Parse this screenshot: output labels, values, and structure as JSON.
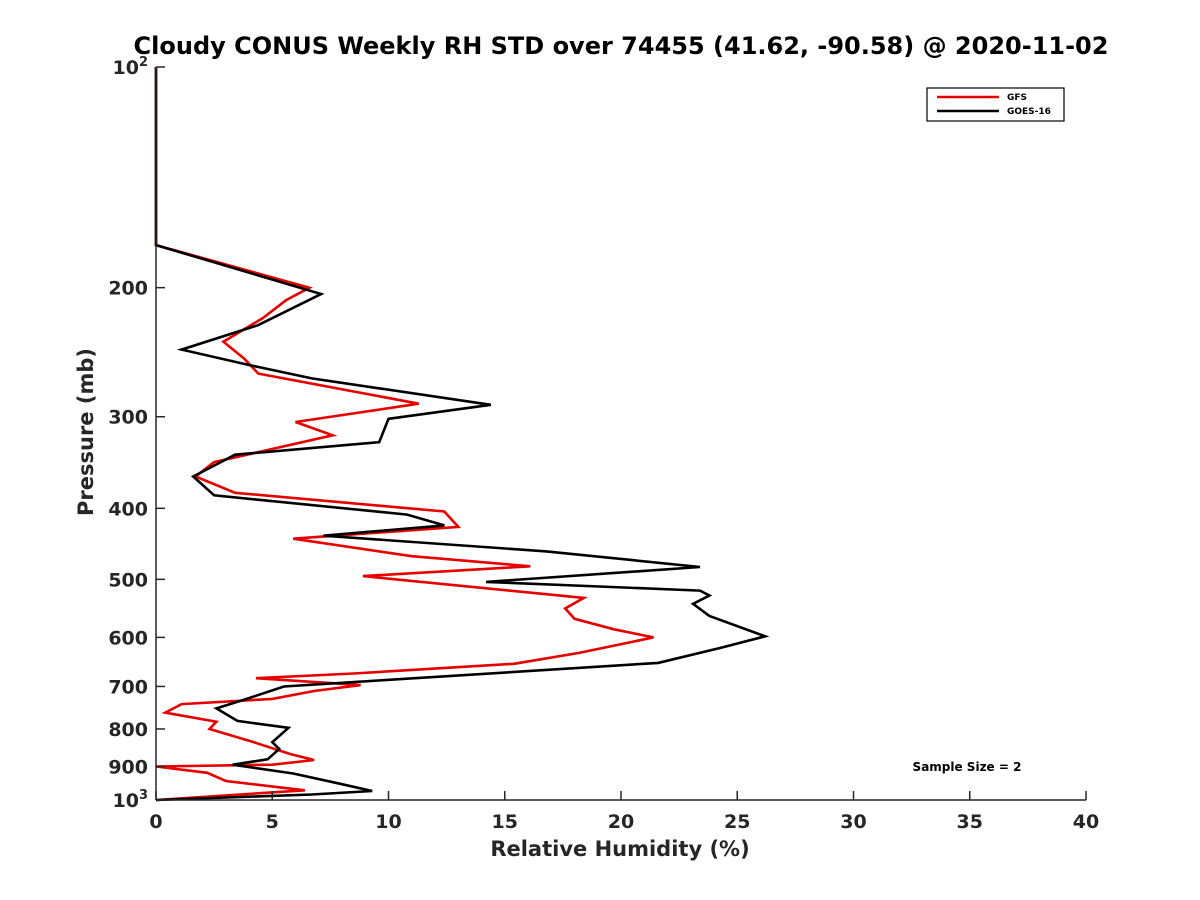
{
  "chart_data": {
    "type": "line",
    "title": "Cloudy CONUS Weekly RH STD over 74455 (41.62, -90.58) @ 2020-11-02",
    "xlabel": "Relative Humidity (%)",
    "ylabel": "Pressure (mb)",
    "xlim": [
      0,
      40
    ],
    "ylim": [
      100,
      1000
    ],
    "y_scale": "log",
    "y_reversed": true,
    "grid": false,
    "legend_position": "top-right",
    "x_ticks": [
      "0",
      "5",
      "10",
      "15",
      "20",
      "25",
      "30",
      "35",
      "40"
    ],
    "y_ticks": [
      {
        "value": 100,
        "base": "10",
        "exp": "2"
      },
      {
        "value": 200,
        "label": "200"
      },
      {
        "value": 300,
        "label": "300"
      },
      {
        "value": 400,
        "label": "400"
      },
      {
        "value": 500,
        "label": "500"
      },
      {
        "value": 600,
        "label": "600"
      },
      {
        "value": 700,
        "label": "700"
      },
      {
        "value": 800,
        "label": "800"
      },
      {
        "value": 900,
        "label": "900"
      },
      {
        "value": 1000,
        "base": "10",
        "exp": "3"
      }
    ],
    "annotation": "Sample Size = 2",
    "series": [
      {
        "name": "GFS",
        "color": "#e60000",
        "points": [
          [
            0,
            100
          ],
          [
            0,
            175
          ],
          [
            6.6,
            200
          ],
          [
            5.6,
            208
          ],
          [
            4.6,
            220
          ],
          [
            2.9,
            237
          ],
          [
            3.8,
            250
          ],
          [
            4.4,
            262
          ],
          [
            11.3,
            288
          ],
          [
            6.0,
            305
          ],
          [
            7.6,
            318
          ],
          [
            2.5,
            346
          ],
          [
            1.7,
            362
          ],
          [
            3.4,
            381
          ],
          [
            12.4,
            404
          ],
          [
            13.0,
            424
          ],
          [
            5.9,
            440
          ],
          [
            11.0,
            465
          ],
          [
            16.1,
            480
          ],
          [
            8.9,
            495
          ],
          [
            18.4,
            530
          ],
          [
            17.6,
            548
          ],
          [
            18.0,
            566
          ],
          [
            19.7,
            585
          ],
          [
            21.4,
            600
          ],
          [
            18.2,
            630
          ],
          [
            15.4,
            652
          ],
          [
            8.5,
            672
          ],
          [
            4.3,
            682
          ],
          [
            8.8,
            697
          ],
          [
            6.8,
            710
          ],
          [
            5.0,
            728
          ],
          [
            1.1,
            740
          ],
          [
            0.4,
            760
          ],
          [
            2.6,
            782
          ],
          [
            2.3,
            800
          ],
          [
            4.0,
            830
          ],
          [
            5.8,
            866
          ],
          [
            6.8,
            882
          ],
          [
            5.0,
            895
          ],
          [
            0,
            900
          ],
          [
            2.2,
            918
          ],
          [
            3.0,
            942
          ],
          [
            6.4,
            970
          ],
          [
            0,
            1000
          ]
        ]
      },
      {
        "name": "GOES-16",
        "color": "#000000",
        "points": [
          [
            0,
            100
          ],
          [
            0,
            175
          ],
          [
            7.1,
            204
          ],
          [
            4.4,
            225
          ],
          [
            1.1,
            243
          ],
          [
            4.0,
            255
          ],
          [
            6.7,
            266
          ],
          [
            14.4,
            289
          ],
          [
            10.0,
            302
          ],
          [
            9.6,
            325
          ],
          [
            3.4,
            338
          ],
          [
            1.6,
            362
          ],
          [
            2.5,
            384
          ],
          [
            10.8,
            408
          ],
          [
            12.4,
            422
          ],
          [
            7.2,
            436
          ],
          [
            16.8,
            458
          ],
          [
            23.4,
            481
          ],
          [
            14.2,
            504
          ],
          [
            23.4,
            518
          ],
          [
            23.8,
            526
          ],
          [
            23.1,
            540
          ],
          [
            23.8,
            561
          ],
          [
            26.2,
            598
          ],
          [
            24.3,
            620
          ],
          [
            21.6,
            650
          ],
          [
            8.6,
            690
          ],
          [
            5.5,
            700
          ],
          [
            4.0,
            726
          ],
          [
            2.6,
            750
          ],
          [
            3.5,
            780
          ],
          [
            5.7,
            797
          ],
          [
            5.0,
            834
          ],
          [
            5.3,
            852
          ],
          [
            4.8,
            880
          ],
          [
            3.3,
            895
          ],
          [
            5.9,
            920
          ],
          [
            7.9,
            950
          ],
          [
            9.3,
            972
          ],
          [
            6.7,
            983
          ],
          [
            0,
            1000
          ]
        ]
      }
    ]
  }
}
